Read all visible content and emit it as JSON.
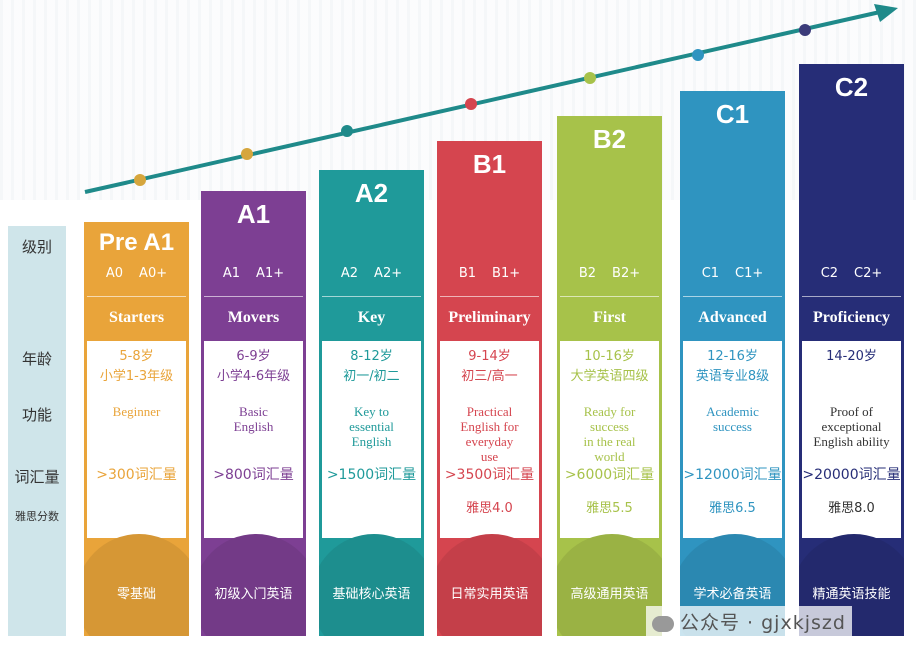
{
  "row_labels": {
    "level": "级别",
    "age": "年龄",
    "function": "功能",
    "vocab": "词汇量",
    "ielts": "雅思分数"
  },
  "levels": [
    {
      "name": "Pre A1",
      "sub": [
        "A0",
        "A0+"
      ],
      "exam": "Starters",
      "age": "5-8岁",
      "grade": "小学1-3年级",
      "function": "Beginner",
      "vocab": ">300词汇量",
      "ielts": "",
      "stage": "零基础",
      "color": "#e9a43a"
    },
    {
      "name": "A1",
      "sub": [
        "A1",
        "A1+"
      ],
      "exam": "Movers",
      "age": "6-9岁",
      "grade": "小学4-6年级",
      "function": "Basic\nEnglish",
      "vocab": ">800词汇量",
      "ielts": "",
      "stage": "初级入门英语",
      "color": "#7d3f93"
    },
    {
      "name": "A2",
      "sub": [
        "A2",
        "A2+"
      ],
      "exam": "Key",
      "age": "8-12岁",
      "grade": "初一/初二",
      "function": "Key to\nessential\nEnglish",
      "vocab": ">1500词汇量",
      "ielts": "",
      "stage": "基础核心英语",
      "color": "#1f9a9a"
    },
    {
      "name": "B1",
      "sub": [
        "B1",
        "B1+"
      ],
      "exam": "Preliminary",
      "age": "9-14岁",
      "grade": "初三/高一",
      "function": "Practical\nEnglish for\neveryday\nuse",
      "vocab": ">3500词汇量",
      "ielts": "雅思4.0",
      "stage": "日常实用英语",
      "color": "#d5454f"
    },
    {
      "name": "B2",
      "sub": [
        "B2",
        "B2+"
      ],
      "exam": "First",
      "age": "10-16岁",
      "grade": "大学英语四级",
      "function": "Ready for\nsuccess\nin the real\nworld",
      "vocab": ">6000词汇量",
      "ielts": "雅思5.5",
      "stage": "高级通用英语",
      "color": "#a7c24a"
    },
    {
      "name": "C1",
      "sub": [
        "C1",
        "C1+"
      ],
      "exam": "Advanced",
      "age": "12-16岁",
      "grade": "英语专业8级",
      "function": "Academic\nsuccess",
      "vocab": ">12000词汇量",
      "ielts": "雅思6.5",
      "stage": "学术必备英语",
      "color": "#2f94c0"
    },
    {
      "name": "C2",
      "sub": [
        "C2",
        "C2+"
      ],
      "exam": "Proficiency",
      "age": "14-20岁",
      "grade": "",
      "function": "Proof of\nexceptional\nEnglish ability",
      "vocab": ">20000词汇量",
      "ielts": "雅思8.0",
      "stage": "精通英语技能",
      "color": "#262d77"
    }
  ],
  "watermark": "公众号 · gjxkjszd"
}
